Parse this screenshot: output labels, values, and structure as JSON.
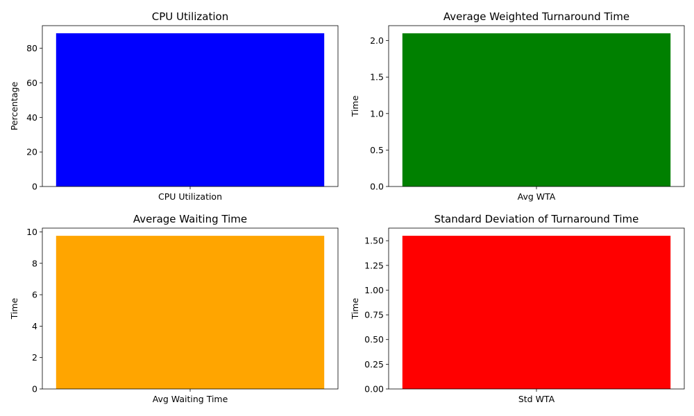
{
  "chart_data": [
    {
      "type": "bar",
      "title": "CPU Utilization",
      "xlabel": "",
      "ylabel": "Percentage",
      "categories": [
        "CPU Utilization"
      ],
      "values": [
        88.7
      ],
      "ylim": [
        0,
        93.1
      ],
      "yticks": [
        "0",
        "20",
        "40",
        "60",
        "80"
      ],
      "ytick_values": [
        0,
        20,
        40,
        60,
        80
      ],
      "color": "#0000ff",
      "grid": false
    },
    {
      "type": "bar",
      "title": "Average Weighted Turnaround Time",
      "xlabel": "",
      "ylabel": "Time",
      "categories": [
        "Avg WTA"
      ],
      "values": [
        2.1
      ],
      "ylim": [
        0,
        2.205
      ],
      "yticks": [
        "0.0",
        "0.5",
        "1.0",
        "1.5",
        "2.0"
      ],
      "ytick_values": [
        0,
        0.5,
        1.0,
        1.5,
        2.0
      ],
      "color": "#008000",
      "grid": false
    },
    {
      "type": "bar",
      "title": "Average Waiting Time",
      "xlabel": "",
      "ylabel": "Time",
      "categories": [
        "Avg Waiting Time"
      ],
      "values": [
        9.75
      ],
      "ylim": [
        0,
        10.24
      ],
      "yticks": [
        "0",
        "2",
        "4",
        "6",
        "8",
        "10"
      ],
      "ytick_values": [
        0,
        2,
        4,
        6,
        8,
        10
      ],
      "color": "#ffa500",
      "grid": false
    },
    {
      "type": "bar",
      "title": "Standard Deviation of Turnaround Time",
      "xlabel": "",
      "ylabel": "Time",
      "categories": [
        "Std WTA"
      ],
      "values": [
        1.55
      ],
      "ylim": [
        0,
        1.6275
      ],
      "yticks": [
        "0.00",
        "0.25",
        "0.50",
        "0.75",
        "1.00",
        "1.25",
        "1.50"
      ],
      "ytick_values": [
        0,
        0.25,
        0.5,
        0.75,
        1.0,
        1.25,
        1.5
      ],
      "color": "#ff0000",
      "grid": false
    }
  ]
}
